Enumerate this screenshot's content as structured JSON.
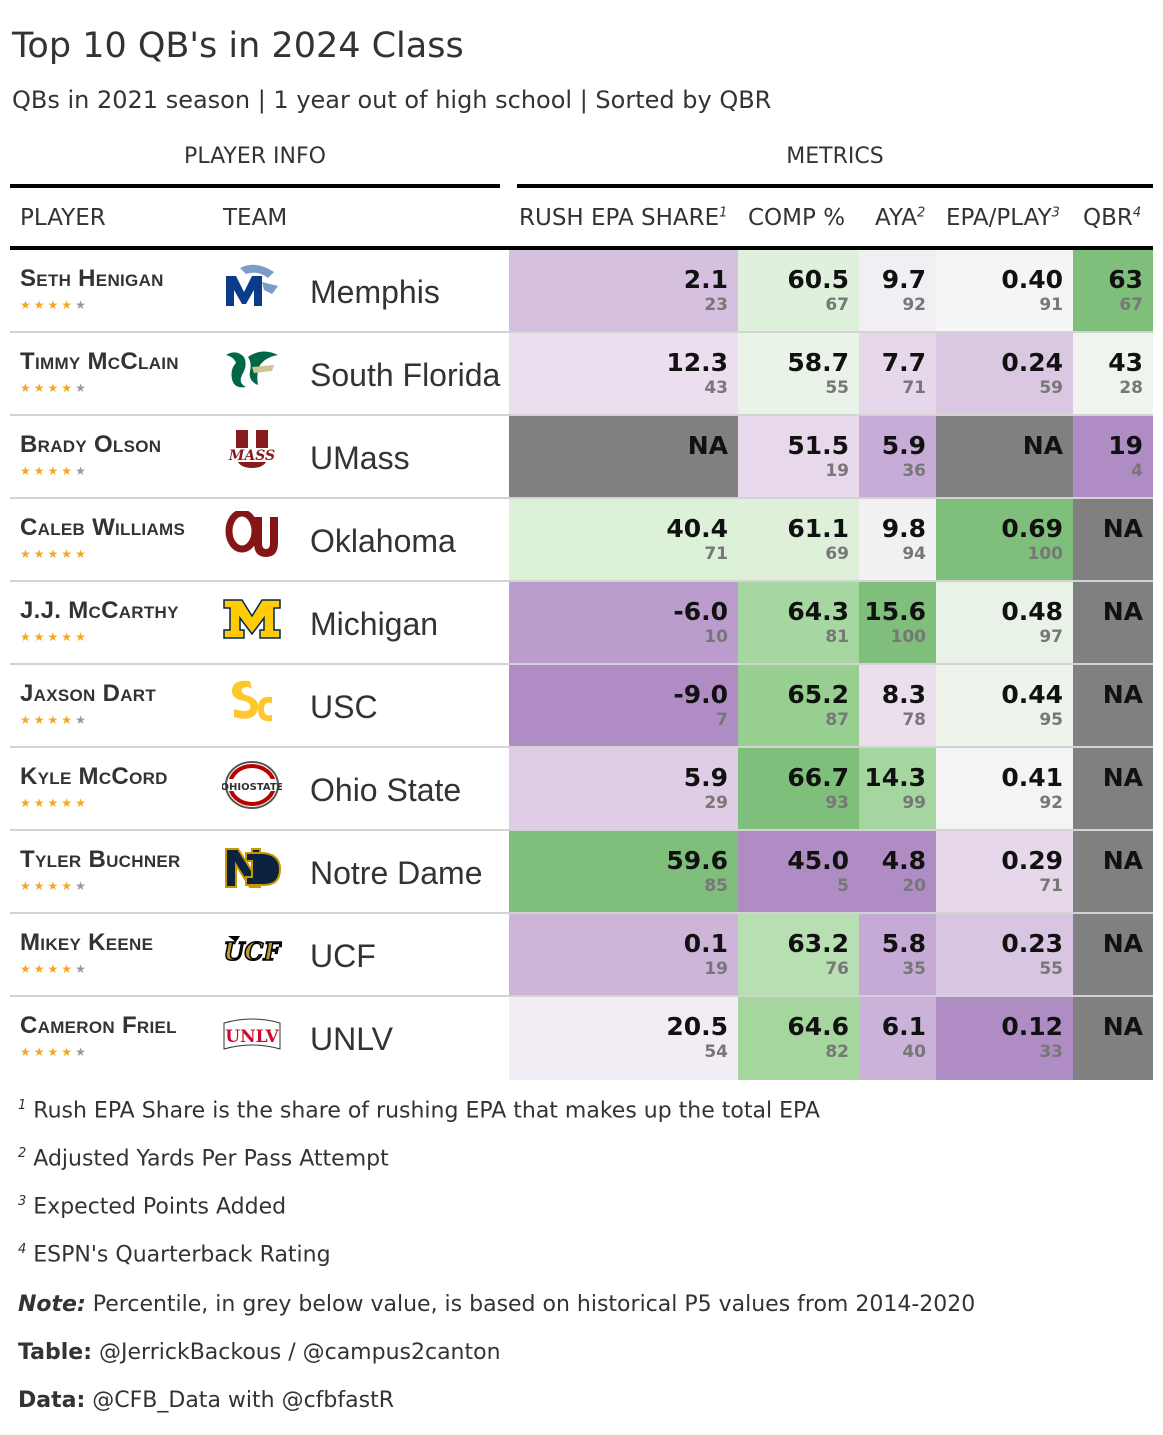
{
  "title": "Top 10 QB's in 2024 Class",
  "subtitle": "QBs in 2021 season | 1 year out of high school | Sorted by QBR",
  "spanners": {
    "player_info": "PLAYER INFO",
    "metrics": "METRICS"
  },
  "columns": {
    "player": "PLAYER",
    "team": "TEAM",
    "rush_epa": "RUSH EPA SHARE",
    "rush_epa_sup": "1",
    "comp": "COMP %",
    "aya": "AYA",
    "aya_sup": "2",
    "epa": "EPA/PLAY",
    "epa_sup": "3",
    "qbr": "QBR",
    "qbr_sup": "4"
  },
  "chart_data": {
    "type": "table",
    "title": "Top 10 QB's in 2024 Class",
    "columns": [
      "PLAYER",
      "TEAM",
      "RUSH EPA SHARE",
      "COMP %",
      "AYA",
      "EPA/PLAY",
      "QBR"
    ],
    "rows": [
      {
        "player": "Seth Henigan",
        "stars": 4,
        "team": "Memphis",
        "logo": "memphis-logo",
        "logo_color": "#0b3c8c",
        "rush_epa": {
          "v": "2.1",
          "p": "23",
          "bg": "#d5c1df"
        },
        "comp": {
          "v": "60.5",
          "p": "67",
          "bg": "#dff0dc"
        },
        "aya": {
          "v": "9.7",
          "p": "92",
          "bg": "#f1eef4"
        },
        "epa": {
          "v": "0.40",
          "p": "91",
          "bg": "#f5f5f5"
        },
        "qbr": {
          "v": "63",
          "p": "67",
          "bg": "#7fbf7b"
        }
      },
      {
        "player": "Timmy McClain",
        "stars": 4,
        "team": "South Florida",
        "logo": "usf-logo",
        "logo_color": "#006747",
        "rush_epa": {
          "v": "12.3",
          "p": "43",
          "bg": "#ebdeef"
        },
        "comp": {
          "v": "58.7",
          "p": "55",
          "bg": "#eaf3e7"
        },
        "aya": {
          "v": "7.7",
          "p": "71",
          "bg": "#e6d8ea"
        },
        "epa": {
          "v": "0.24",
          "p": "59",
          "bg": "#dac8e3"
        },
        "qbr": {
          "v": "43",
          "p": "28",
          "bg": "#f0f4ee"
        }
      },
      {
        "player": "Brady Olson",
        "stars": 4,
        "team": "UMass",
        "logo": "umass-logo",
        "logo_color": "#881c1c",
        "rush_epa": {
          "v": "NA",
          "p": "",
          "bg": "#808080"
        },
        "comp": {
          "v": "51.5",
          "p": "19",
          "bg": "#e7d9eb"
        },
        "aya": {
          "v": "5.9",
          "p": "36",
          "bg": "#c6acd6"
        },
        "epa": {
          "v": "NA",
          "p": "",
          "bg": "#808080"
        },
        "qbr": {
          "v": "19",
          "p": "4",
          "bg": "#b08cc4"
        }
      },
      {
        "player": "Caleb Williams",
        "stars": 5,
        "team": "Oklahoma",
        "logo": "oklahoma-logo",
        "logo_color": "#841617",
        "rush_epa": {
          "v": "40.4",
          "p": "71",
          "bg": "#ddf0d8"
        },
        "comp": {
          "v": "61.1",
          "p": "69",
          "bg": "#def0da"
        },
        "aya": {
          "v": "9.8",
          "p": "94",
          "bg": "#f2f0f3"
        },
        "epa": {
          "v": "0.69",
          "p": "100",
          "bg": "#7fbf7b"
        },
        "qbr": {
          "v": "NA",
          "p": "",
          "bg": "#808080"
        }
      },
      {
        "player": "J.J. McCarthy",
        "stars": 5,
        "team": "Michigan",
        "logo": "michigan-logo",
        "logo_color": "#ffcb05",
        "rush_epa": {
          "v": "-6.0",
          "p": "10",
          "bg": "#bb9ccc"
        },
        "comp": {
          "v": "64.3",
          "p": "81",
          "bg": "#a7d7a0"
        },
        "aya": {
          "v": "15.6",
          "p": "100",
          "bg": "#7fbf7b"
        },
        "epa": {
          "v": "0.48",
          "p": "97",
          "bg": "#e9f2e6"
        },
        "qbr": {
          "v": "NA",
          "p": "",
          "bg": "#808080"
        }
      },
      {
        "player": "Jaxson Dart",
        "stars": 4,
        "team": "USC",
        "logo": "usc-logo",
        "logo_color": "#ffc72c",
        "rush_epa": {
          "v": "-9.0",
          "p": "7",
          "bg": "#b08cc4"
        },
        "comp": {
          "v": "65.2",
          "p": "87",
          "bg": "#97cf90"
        },
        "aya": {
          "v": "8.3",
          "p": "78",
          "bg": "#ebdfee"
        },
        "epa": {
          "v": "0.44",
          "p": "95",
          "bg": "#eef3eb"
        },
        "qbr": {
          "v": "NA",
          "p": "",
          "bg": "#808080"
        }
      },
      {
        "player": "Kyle McCord",
        "stars": 5,
        "team": "Ohio State",
        "logo": "ohio-state-logo",
        "logo_color": "#bb0000",
        "rush_epa": {
          "v": "5.9",
          "p": "29",
          "bg": "#dfcde6"
        },
        "comp": {
          "v": "66.7",
          "p": "93",
          "bg": "#7fbf7b"
        },
        "aya": {
          "v": "14.3",
          "p": "99",
          "bg": "#a6d69f"
        },
        "epa": {
          "v": "0.41",
          "p": "92",
          "bg": "#f4f4f4"
        },
        "qbr": {
          "v": "NA",
          "p": "",
          "bg": "#808080"
        }
      },
      {
        "player": "Tyler Buchner",
        "stars": 4,
        "team": "Notre Dame",
        "logo": "notre-dame-logo",
        "logo_color": "#0c2340",
        "rush_epa": {
          "v": "59.6",
          "p": "85",
          "bg": "#7fbf7b"
        },
        "comp": {
          "v": "45.0",
          "p": "5",
          "bg": "#b08cc4"
        },
        "aya": {
          "v": "4.8",
          "p": "20",
          "bg": "#b08cc4"
        },
        "epa": {
          "v": "0.29",
          "p": "71",
          "bg": "#e6d8ea"
        },
        "qbr": {
          "v": "NA",
          "p": "",
          "bg": "#808080"
        }
      },
      {
        "player": "Mikey Keene",
        "stars": 4,
        "team": "UCF",
        "logo": "ucf-logo",
        "logo_color": "#000000",
        "rush_epa": {
          "v": "0.1",
          "p": "19",
          "bg": "#cdb5da"
        },
        "comp": {
          "v": "63.2",
          "p": "76",
          "bg": "#b8dfb2"
        },
        "aya": {
          "v": "5.8",
          "p": "35",
          "bg": "#c5aad5"
        },
        "epa": {
          "v": "0.23",
          "p": "55",
          "bg": "#d8c5e1"
        },
        "qbr": {
          "v": "NA",
          "p": "",
          "bg": "#808080"
        }
      },
      {
        "player": "Cameron Friel",
        "stars": 4,
        "team": "UNLV",
        "logo": "unlv-logo",
        "logo_color": "#cf0a2c",
        "rush_epa": {
          "v": "20.5",
          "p": "54",
          "bg": "#f2ecf4"
        },
        "comp": {
          "v": "64.6",
          "p": "82",
          "bg": "#a4d69d"
        },
        "aya": {
          "v": "6.1",
          "p": "40",
          "bg": "#cbb2d9"
        },
        "epa": {
          "v": "0.12",
          "p": "33",
          "bg": "#b08cc4"
        },
        "qbr": {
          "v": "NA",
          "p": "",
          "bg": "#808080"
        }
      }
    ]
  },
  "footnotes": [
    {
      "mark": "1",
      "text": "Rush EPA Share is the share of rushing EPA that makes up the total EPA"
    },
    {
      "mark": "2",
      "text": "Adjusted Yards Per Pass Attempt"
    },
    {
      "mark": "3",
      "text": "Expected Points Added"
    },
    {
      "mark": "4",
      "text": "ESPN's Quarterback Rating"
    }
  ],
  "source": {
    "note_label": "Note:",
    "note_text": "Percentile, in grey below value, is based on historical P5 values from 2014-2020",
    "table_label": "Table:",
    "table_text": "@JerrickBackous / @campus2canton",
    "data_label": "Data:",
    "data_text": "@CFB_Data with @cfbfastR"
  }
}
